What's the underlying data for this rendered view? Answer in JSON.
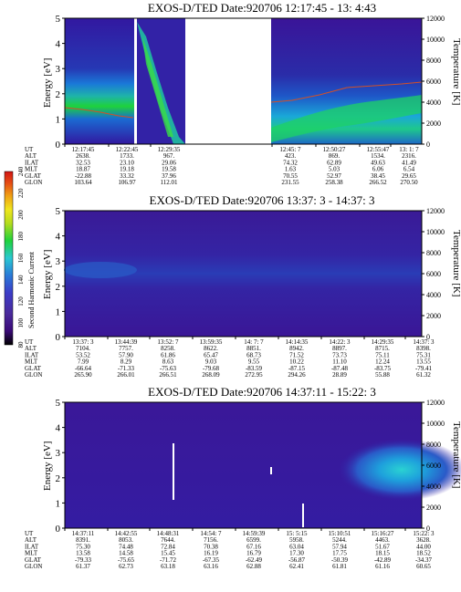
{
  "figure": {
    "instrument": "EXOS-D/TED"
  },
  "colorbar": {
    "label": "Second Harmonic Current",
    "ticks": [
      "80",
      "100",
      "120",
      "140",
      "160",
      "180",
      "200",
      "220",
      "240"
    ],
    "colors": [
      "#000000",
      "#3a0a78",
      "#4a2a9c",
      "#3c3cc8",
      "#2a7ad8",
      "#2ac8d2",
      "#1ed23c",
      "#b4dc1e",
      "#f0e61e",
      "#f0a014",
      "#e65014",
      "#d21414"
    ]
  },
  "chart_data": [
    {
      "type": "heatmap",
      "title": "EXOS-D/TED   Date:920706  12:17:45 - 13: 4:43",
      "ylabel": "Energy [eV]",
      "y2label": "Temperature [K]",
      "ylim": [
        0,
        5
      ],
      "y2lim": [
        0,
        12000
      ],
      "yticks": [
        "0",
        "1",
        "2",
        "3",
        "4",
        "5"
      ],
      "y2ticks": [
        "0",
        "2000",
        "4000",
        "6000",
        "8000",
        "10000",
        "12000"
      ],
      "data_gaps": [
        "12:27:30 - 12:29:00",
        "12:33:00 - 12:45:00"
      ],
      "ephemeris": {
        "labels": [
          "UT",
          "ALT",
          "ILAT",
          "MLT",
          "GLAT",
          "GLON"
        ],
        "columns": [
          [
            "12:17:45",
            "2638.",
            "32.53",
            "18.87",
            "-22.88",
            "103.64"
          ],
          [
            "12:22:45",
            "1733.",
            "23.10",
            "19.18",
            "33.32",
            "106.97"
          ],
          [
            "12:29:35",
            "967.",
            "29.06",
            "19.58",
            "37.96",
            "112.01"
          ],
          [
            "12:45: 7",
            "423.",
            "74.32",
            "1.63",
            "70.55",
            "231.55"
          ],
          [
            "12:50:27",
            "869.",
            "62.89",
            "5.03",
            "52.97",
            "258.38"
          ],
          [
            "12:55:47",
            "1534.",
            "49.63",
            "6.06",
            "38.45",
            "266.52"
          ],
          [
            "13: 1: 7",
            "2316.",
            "41.49",
            "6.54",
            "29.65",
            "270.50"
          ]
        ]
      }
    },
    {
      "type": "heatmap",
      "title": "EXOS-D/TED   Date:920706  13:37: 3 - 14:37: 3",
      "ylabel": "Energy [eV]",
      "y2label": "Temperature [K]",
      "ylim": [
        0,
        5
      ],
      "y2lim": [
        0,
        12000
      ],
      "yticks": [
        "0",
        "1",
        "2",
        "3",
        "4",
        "5"
      ],
      "y2ticks": [
        "0",
        "2000",
        "4000",
        "6000",
        "8000",
        "10000",
        "12000"
      ],
      "ephemeris": {
        "labels": [
          "UT",
          "ALT",
          "ILAT",
          "MLT",
          "GLAT",
          "GLON"
        ],
        "columns": [
          [
            "13:37: 3",
            "7104.",
            "53.52",
            "7.99",
            "-66.64",
            "265.90"
          ],
          [
            "13:44:39",
            "7757.",
            "57.90",
            "8.29",
            "-71.33",
            "266.01"
          ],
          [
            "13:52: 7",
            "8258.",
            "61.86",
            "8.63",
            "-75.63",
            "266.51"
          ],
          [
            "13:59:35",
            "8622.",
            "65.47",
            "9.03",
            "-79.68",
            "268.09"
          ],
          [
            "14: 7: 7",
            "8851.",
            "68.73",
            "9.55",
            "-83.59",
            "272.95"
          ],
          [
            "14:14:35",
            "8942.",
            "71.52",
            "10.22",
            "-87.15",
            "294.26"
          ],
          [
            "14:22: 3",
            "8897.",
            "73.73",
            "11.10",
            "-87.48",
            "28.89"
          ],
          [
            "14:29:35",
            "8715.",
            "75.11",
            "12.24",
            "-83.75",
            "55.88"
          ],
          [
            "14:37: 3",
            "8398.",
            "75.31",
            "13.55",
            "-79.41",
            "61.32"
          ]
        ]
      }
    },
    {
      "type": "heatmap",
      "title": "EXOS-D/TED   Date:920706  14:37:11 - 15:22: 3",
      "ylabel": "Energy [eV]",
      "y2label": "Temperature [K]",
      "ylim": [
        0,
        5
      ],
      "y2lim": [
        0,
        12000
      ],
      "yticks": [
        "0",
        "1",
        "2",
        "3",
        "4",
        "5"
      ],
      "y2ticks": [
        "0",
        "2000",
        "4000",
        "6000",
        "8000",
        "10000",
        "12000"
      ],
      "ephemeris": {
        "labels": [
          "UT",
          "ALT",
          "ILAT",
          "MLT",
          "GLAT",
          "GLON"
        ],
        "columns": [
          [
            "14:37:11",
            "8391.",
            "75.30",
            "13.58",
            "-79.33",
            "61.37"
          ],
          [
            "14:42:55",
            "8053.",
            "74.48",
            "14.58",
            "-75.65",
            "62.73"
          ],
          [
            "14:48:31",
            "7644.",
            "72.84",
            "15.45",
            "-71.72",
            "63.18"
          ],
          [
            "14:54: 7",
            "7156.",
            "70.38",
            "16.19",
            "-67.35",
            "63.16"
          ],
          [
            "14:59:39",
            "6599.",
            "67.16",
            "16.79",
            "-62.49",
            "62.88"
          ],
          [
            "15: 5:15",
            "5958.",
            "63.04",
            "17.30",
            "-56.87",
            "62.41"
          ],
          [
            "15:10:51",
            "5244.",
            "57.94",
            "17.75",
            "-50.39",
            "61.81"
          ],
          [
            "15:16:27",
            "4463.",
            "51.67",
            "18.15",
            "-42.89",
            "61.16"
          ],
          [
            "15:22: 3",
            "3628.",
            "44.00",
            "18.52",
            "-34.37",
            "60.65"
          ]
        ]
      }
    }
  ]
}
